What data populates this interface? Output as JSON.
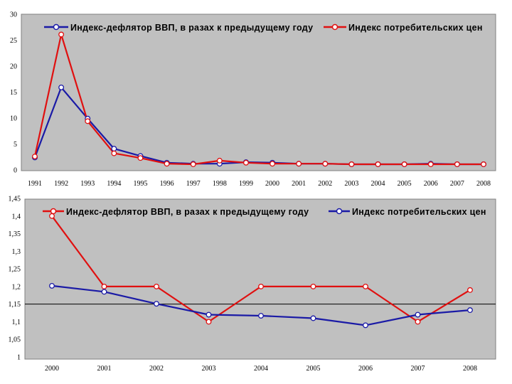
{
  "chart_data": [
    {
      "type": "line",
      "categories": [
        "1991",
        "1992",
        "1993",
        "1994",
        "1995",
        "1996",
        "1997",
        "1998",
        "1999",
        "2000",
        "2001",
        "2002",
        "2003",
        "2004",
        "2005",
        "2006",
        "2007",
        "2008"
      ],
      "ylim": [
        0,
        30
      ],
      "yticks": [
        "0",
        "5",
        "10",
        "15",
        "20",
        "25",
        "30"
      ],
      "grid": false,
      "legend_position": "top",
      "series": [
        {
          "name": "Индекс-дефлятор ВВП, в разах к предыдущему году",
          "color": "#1a1aa6",
          "values": [
            2.4,
            15.9,
            9.9,
            4.1,
            2.7,
            1.4,
            1.2,
            1.2,
            1.5,
            1.4,
            1.2,
            1.2,
            1.1,
            1.1,
            1.1,
            1.2,
            1.1,
            1.1
          ]
        },
        {
          "name": "Индекс потребительских цен",
          "color": "#e01010",
          "values": [
            2.6,
            26.1,
            9.4,
            3.2,
            2.3,
            1.2,
            1.1,
            1.8,
            1.4,
            1.2,
            1.2,
            1.2,
            1.1,
            1.1,
            1.1,
            1.1,
            1.1,
            1.1
          ]
        }
      ]
    },
    {
      "type": "line",
      "categories": [
        "2000",
        "2001",
        "2002",
        "2003",
        "2004",
        "2005",
        "2006",
        "2007",
        "2008"
      ],
      "ylim": [
        1,
        1.45
      ],
      "yticks": [
        "1",
        "1,05",
        "1,1",
        "1,15",
        "1,2",
        "1,25",
        "1,3",
        "1,35",
        "1,4",
        "1,45"
      ],
      "reference_line": 1.15,
      "grid": false,
      "legend_position": "top",
      "series": [
        {
          "name": "Индекс-дефлятор ВВП, в разах к предыдущему году",
          "color": "#e01010",
          "values": [
            1.4,
            1.2,
            1.2,
            1.1,
            1.2,
            1.2,
            1.2,
            1.1,
            1.19
          ]
        },
        {
          "name": "Индекс потребительских цен",
          "color": "#1a1aa6",
          "values": [
            1.202,
            1.185,
            1.151,
            1.12,
            1.117,
            1.11,
            1.09,
            1.12,
            1.133
          ]
        }
      ]
    }
  ]
}
